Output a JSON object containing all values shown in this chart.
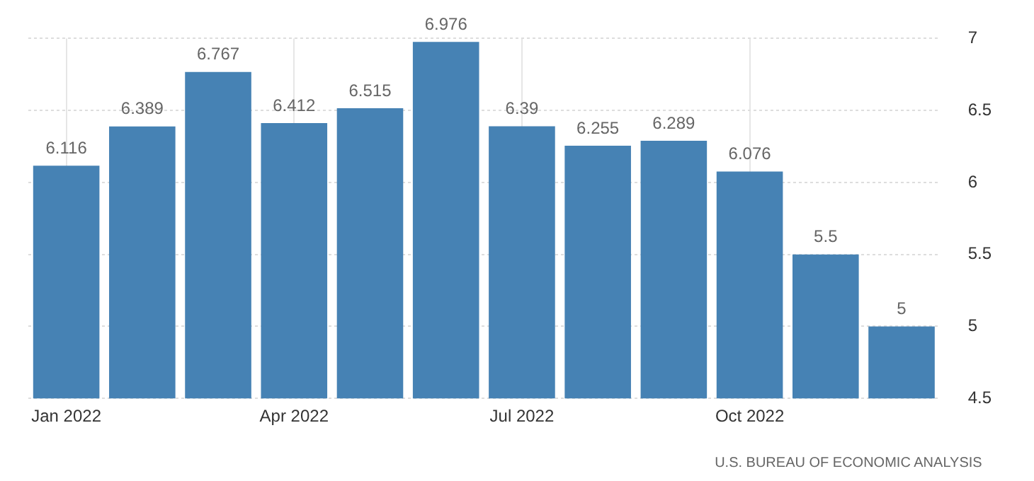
{
  "chart_data": {
    "type": "bar",
    "categories": [
      "Jan 2022",
      null,
      null,
      "Apr 2022",
      null,
      null,
      "Jul 2022",
      null,
      null,
      "Oct 2022",
      null,
      null
    ],
    "values": [
      6.116,
      6.389,
      6.767,
      6.412,
      6.515,
      6.976,
      6.39,
      6.255,
      6.289,
      6.076,
      5.5,
      5
    ],
    "color": "#4682b4",
    "ylim": [
      4.5,
      7
    ],
    "yticks": [
      4.5,
      5,
      5.5,
      6,
      6.5,
      7
    ],
    "grid": true,
    "data_labels": true,
    "legend": false,
    "annotations": [
      "U.S. BUREAU OF ECONOMIC ANALYSIS"
    ]
  }
}
